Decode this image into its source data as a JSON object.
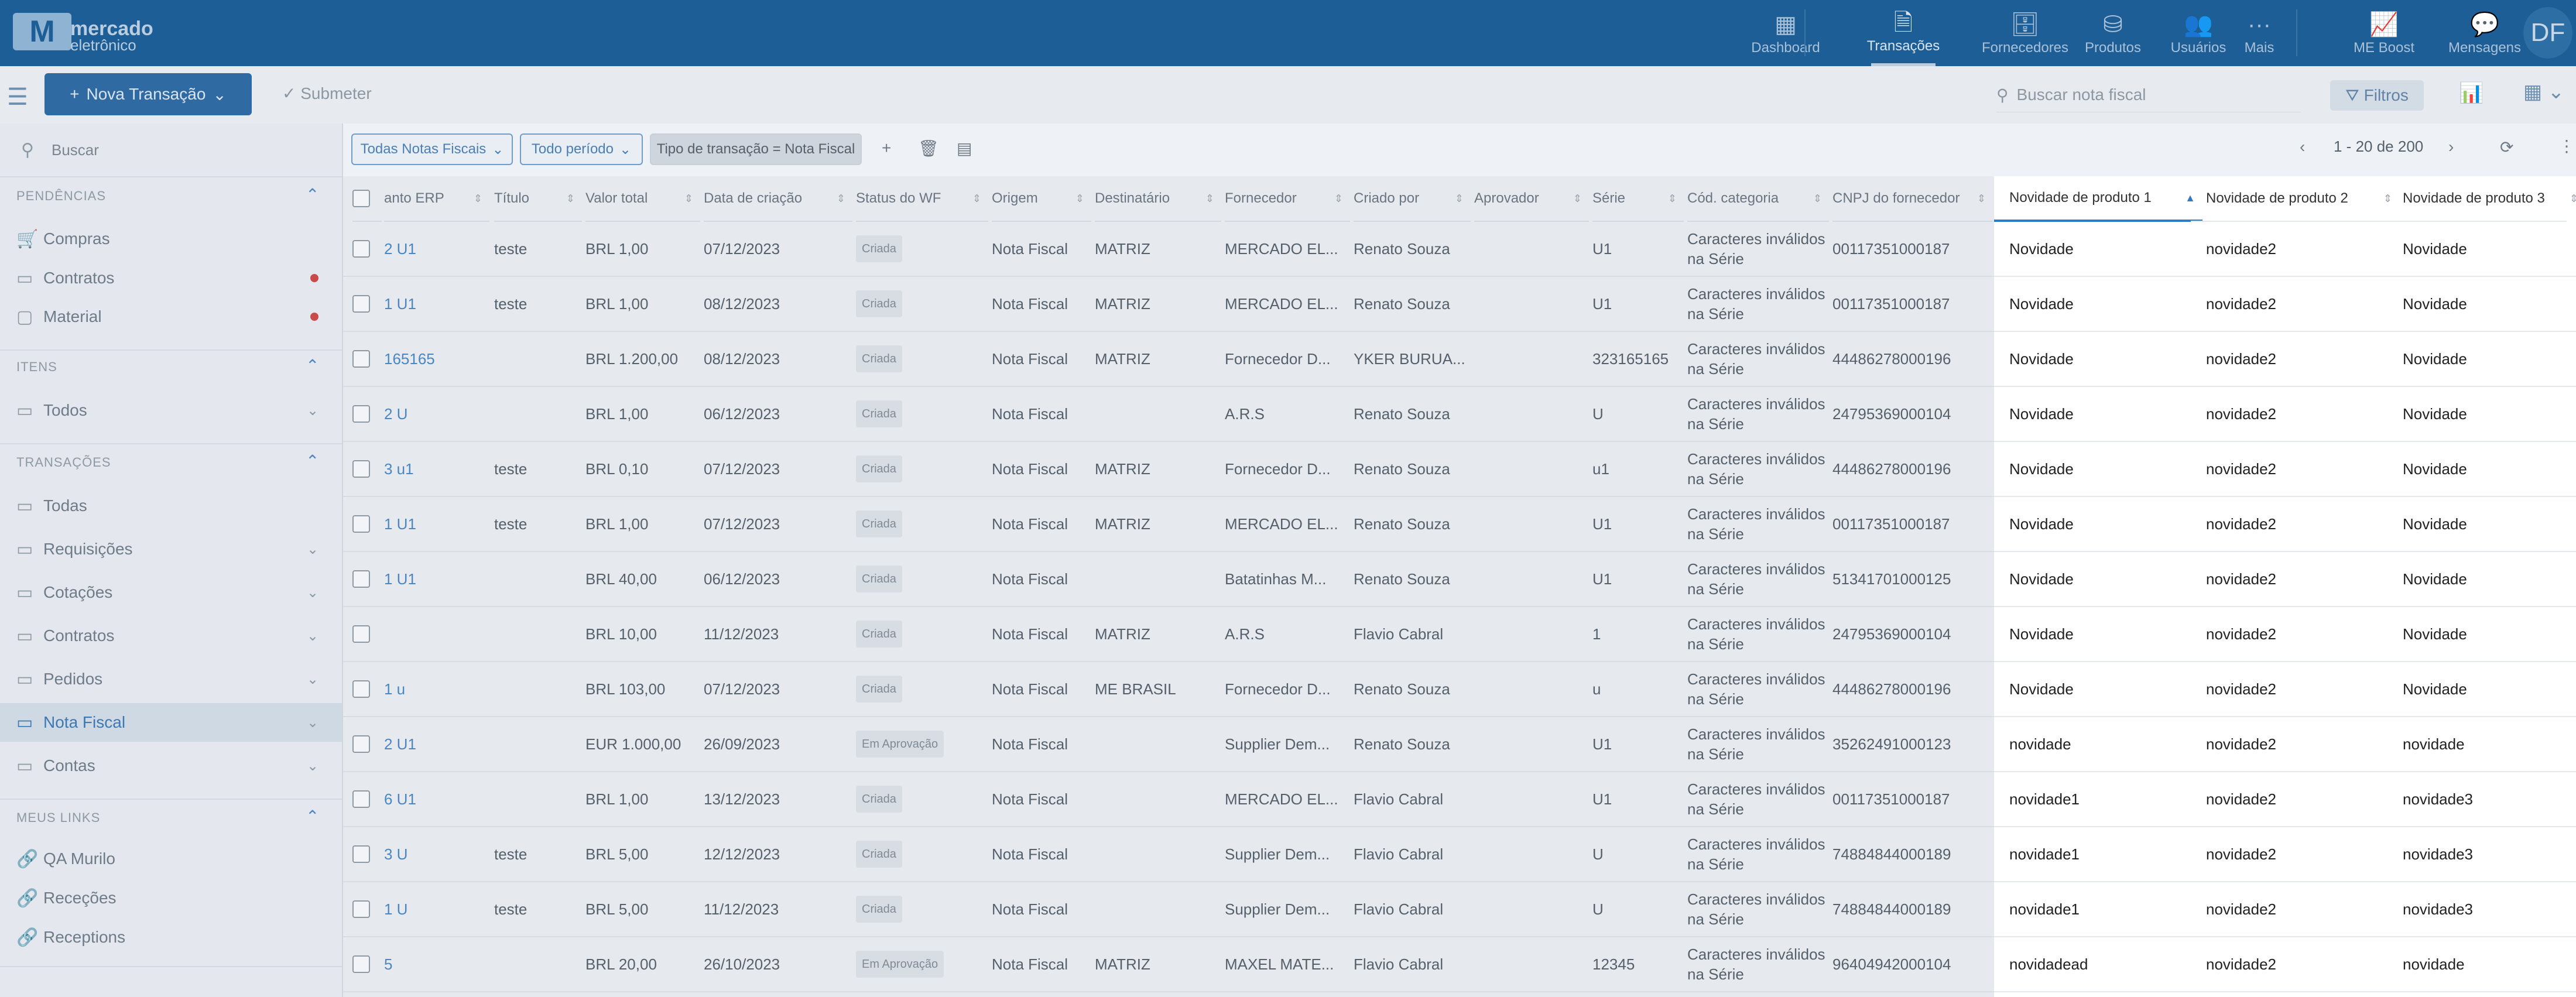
{
  "brand": {
    "logo_letter": "M",
    "line1": "mercado",
    "line2": "eletrônico"
  },
  "nav": [
    {
      "label": "Dashboard",
      "icon": "dashboard-icon",
      "glyph": "▦"
    },
    {
      "label": "Transações",
      "icon": "transactions-icon",
      "glyph": "🗎",
      "active": true
    },
    {
      "label": "Fornecedores",
      "icon": "suppliers-icon",
      "glyph": "🗄"
    },
    {
      "label": "Produtos",
      "icon": "products-icon",
      "glyph": "⛁"
    },
    {
      "label": "Usuários",
      "icon": "users-icon",
      "glyph": "👥"
    },
    {
      "label": "Mais",
      "icon": "more-icon",
      "glyph": "···"
    },
    {
      "label": "ME Boost",
      "icon": "boost-icon",
      "glyph": "📈"
    },
    {
      "label": "Mensagens",
      "icon": "messages-icon",
      "glyph": "💬"
    }
  ],
  "user": {
    "initials": "DF"
  },
  "toolbar": {
    "new_label": "Nova Transação",
    "submit_label": "Submeter",
    "search_placeholder": "Buscar nota fiscal",
    "filters_label": "Filtros"
  },
  "sidebar": {
    "search_placeholder": "Buscar",
    "sections": [
      {
        "title": "PENDÊNCIAS",
        "items": [
          {
            "label": "Compras",
            "icon": "cart-icon",
            "glyph": "🛒",
            "dot": false
          },
          {
            "label": "Contratos",
            "icon": "contract-icon",
            "glyph": "▭",
            "dot": true
          },
          {
            "label": "Material",
            "icon": "material-icon",
            "glyph": "▢",
            "dot": true
          }
        ]
      },
      {
        "title": "ITENS",
        "items": [
          {
            "label": "Todos",
            "icon": "folder-icon",
            "glyph": "▭",
            "chev": true
          }
        ]
      },
      {
        "title": "TRANSAÇÕES",
        "items": [
          {
            "label": "Todas",
            "icon": "folder-icon",
            "glyph": "▭"
          },
          {
            "label": "Requisições",
            "icon": "folder-icon",
            "glyph": "▭",
            "chev": true
          },
          {
            "label": "Cotações",
            "icon": "folder-icon",
            "glyph": "▭",
            "chev": true
          },
          {
            "label": "Contratos",
            "icon": "folder-icon",
            "glyph": "▭",
            "chev": true
          },
          {
            "label": "Pedidos",
            "icon": "folder-icon",
            "glyph": "▭",
            "chev": true
          },
          {
            "label": "Nota Fiscal",
            "icon": "folder-icon",
            "glyph": "▭",
            "chev": true,
            "active": true
          },
          {
            "label": "Contas",
            "icon": "folder-icon",
            "glyph": "▭",
            "chev": true
          }
        ]
      },
      {
        "title": "MEUS LINKS",
        "items": [
          {
            "label": "QA Murilo",
            "icon": "link-icon",
            "glyph": "🔗"
          },
          {
            "label": "Receções",
            "icon": "link-icon",
            "glyph": "🔗"
          },
          {
            "label": "Receptions",
            "icon": "link-icon",
            "glyph": "🔗"
          }
        ]
      }
    ]
  },
  "filters": {
    "chip1": "Todas Notas Fiscais",
    "chip2": "Todo período",
    "chip3": "Tipo de transação = Nota Fiscal",
    "pager": "1 - 20 de 200"
  },
  "columns": [
    "anto ERP",
    "Título",
    "Valor total",
    "Data de criação",
    "Status do WF",
    "Origem",
    "Destinatário",
    "Fornecedor",
    "Criado por",
    "Aprovador",
    "Série",
    "Cód. categoria",
    "CNPJ do fornecedor"
  ],
  "hl_columns": [
    "Novidade de produto 1",
    "Novidade de produto 2",
    "Novidade de produto 3"
  ],
  "rows": [
    [
      "2 U1",
      "teste",
      "BRL 1,00",
      "07/12/2023",
      "Criada",
      "Nota Fiscal",
      "MATRIZ",
      "MERCADO EL...",
      "Renato Souza",
      "",
      "U1",
      "Caracteres inválidos na Série",
      "00117351000187",
      "Novidade",
      "novidade2",
      "Novidade"
    ],
    [
      "1 U1",
      "teste",
      "BRL 1,00",
      "08/12/2023",
      "Criada",
      "Nota Fiscal",
      "MATRIZ",
      "MERCADO EL...",
      "Renato Souza",
      "",
      "U1",
      "Caracteres inválidos na Série",
      "00117351000187",
      "Novidade",
      "novidade2",
      "Novidade"
    ],
    [
      "165165",
      "",
      "BRL 1.200,00",
      "08/12/2023",
      "Criada",
      "Nota Fiscal",
      "MATRIZ",
      "Fornecedor D...",
      "YKER BURUA...",
      "",
      "323165165",
      "Caracteres inválidos na Série",
      "44486278000196",
      "Novidade",
      "novidade2",
      "Novidade"
    ],
    [
      "2 U",
      "",
      "BRL 1,00",
      "06/12/2023",
      "Criada",
      "Nota Fiscal",
      "",
      "A.R.S",
      "Renato Souza",
      "",
      "U",
      "Caracteres inválidos na Série",
      "24795369000104",
      "Novidade",
      "novidade2",
      "Novidade"
    ],
    [
      "3 u1",
      "teste",
      "BRL 0,10",
      "07/12/2023",
      "Criada",
      "Nota Fiscal",
      "MATRIZ",
      "Fornecedor D...",
      "Renato Souza",
      "",
      "u1",
      "Caracteres inválidos na Série",
      "44486278000196",
      "Novidade",
      "novidade2",
      "Novidade"
    ],
    [
      "1 U1",
      "teste",
      "BRL 1,00",
      "07/12/2023",
      "Criada",
      "Nota Fiscal",
      "MATRIZ",
      "MERCADO EL...",
      "Renato Souza",
      "",
      "U1",
      "Caracteres inválidos na Série",
      "00117351000187",
      "Novidade",
      "novidade2",
      "Novidade"
    ],
    [
      "1 U1",
      "",
      "BRL 40,00",
      "06/12/2023",
      "Criada",
      "Nota Fiscal",
      "",
      "Batatinhas M...",
      "Renato Souza",
      "",
      "U1",
      "Caracteres inválidos na Série",
      "51341701000125",
      "Novidade",
      "novidade2",
      "Novidade"
    ],
    [
      "",
      "",
      "BRL 10,00",
      "11/12/2023",
      "Criada",
      "Nota Fiscal",
      "MATRIZ",
      "A.R.S",
      "Flavio Cabral",
      "",
      "1",
      "Caracteres inválidos na Série",
      "24795369000104",
      "Novidade",
      "novidade2",
      "Novidade"
    ],
    [
      "1 u",
      "",
      "BRL 103,00",
      "07/12/2023",
      "Criada",
      "Nota Fiscal",
      "ME BRASIL",
      "Fornecedor D...",
      "Renato Souza",
      "",
      "u",
      "Caracteres inválidos na Série",
      "44486278000196",
      "Novidade",
      "novidade2",
      "Novidade"
    ],
    [
      "2 U1",
      "",
      "EUR 1.000,00",
      "26/09/2023",
      "Em Aprovação",
      "Nota Fiscal",
      "",
      "Supplier Dem...",
      "Renato Souza",
      "",
      "U1",
      "Caracteres inválidos na Série",
      "35262491000123",
      "novidade",
      "novidade2",
      "novidade"
    ],
    [
      "6 U1",
      "",
      "BRL 1,00",
      "13/12/2023",
      "Criada",
      "Nota Fiscal",
      "",
      "MERCADO EL...",
      "Flavio Cabral",
      "",
      "U1",
      "Caracteres inválidos na Série",
      "00117351000187",
      "novidade1",
      "novidade2",
      "novidade3"
    ],
    [
      "3 U",
      "teste",
      "BRL 5,00",
      "12/12/2023",
      "Criada",
      "Nota Fiscal",
      "",
      "Supplier Dem...",
      "Flavio Cabral",
      "",
      "U",
      "Caracteres inválidos na Série",
      "74884844000189",
      "novidade1",
      "novidade2",
      "novidade3"
    ],
    [
      "1 U",
      "teste",
      "BRL 5,00",
      "11/12/2023",
      "Criada",
      "Nota Fiscal",
      "",
      "Supplier Dem...",
      "Flavio Cabral",
      "",
      "U",
      "Caracteres inválidos na Série",
      "74884844000189",
      "novidade1",
      "novidade2",
      "novidade3"
    ],
    [
      "5",
      "",
      "BRL 20,00",
      "26/10/2023",
      "Em Aprovação",
      "Nota Fiscal",
      "MATRIZ",
      "MAXEL MATE...",
      "Flavio Cabral",
      "",
      "12345",
      "Caracteres inválidos na Série",
      "96404942000104",
      "novidadead",
      "novidade2",
      "novidade"
    ]
  ]
}
